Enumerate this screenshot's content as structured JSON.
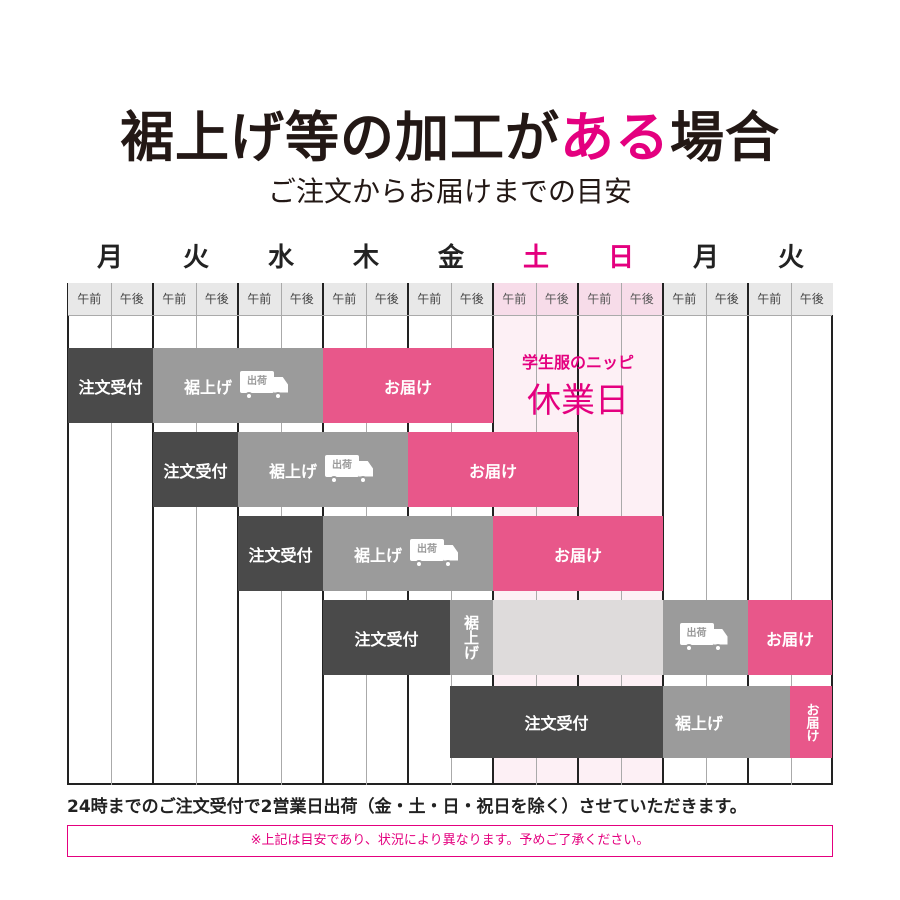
{
  "title": {
    "part1": "裾上げ等の加工が",
    "highlight": "ある",
    "part2": "場合"
  },
  "subtitle": "ご注文からお届けまでの目安",
  "days": [
    "月",
    "火",
    "水",
    "木",
    "金",
    "土",
    "日",
    "月",
    "火"
  ],
  "am": "午前",
  "pm": "午後",
  "labels": {
    "order": "注文受付",
    "hem": "裾上げ",
    "ship": "出荷",
    "deliver": "お届け",
    "hem_vertical": "裾上げ",
    "deliver_vertical": "お届け"
  },
  "holiday": {
    "sub": "学生服のニッピ",
    "main": "休業日"
  },
  "note": "24時までのご注文受付で2営業日出荷（金・土・日・祝日を除く）させていただきます。",
  "disclaimer": "※上記は目安であり、状況により異なります。予めご了承ください。",
  "colors": {
    "accent": "#e4007f",
    "deliver": "#e8578a",
    "order": "#4a4a4a",
    "hem": "#9b9b9b"
  }
}
